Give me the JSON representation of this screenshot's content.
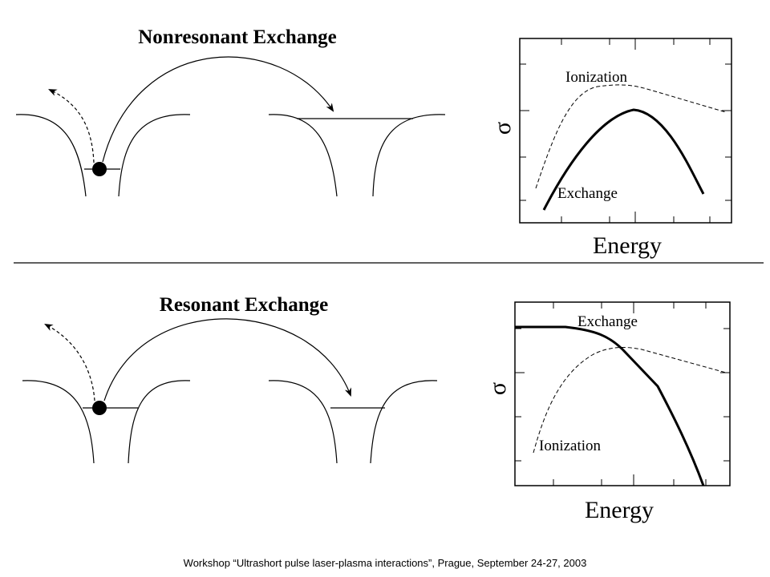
{
  "sections": [
    {
      "title": "Nonresonant Exchange",
      "plot": {
        "y_label": "σ",
        "x_label": "Energy",
        "curves": [
          {
            "label": "Ionization"
          },
          {
            "label": "Exchange"
          }
        ]
      }
    },
    {
      "title": "Resonant Exchange",
      "plot": {
        "y_label": "σ",
        "x_label": "Energy",
        "curves": [
          {
            "label": "Exchange"
          },
          {
            "label": "Ionization"
          }
        ]
      }
    }
  ],
  "footer": "Workshop “Ultrashort pulse laser-plasma interactions”, Prague, September 24-27, 2003"
}
